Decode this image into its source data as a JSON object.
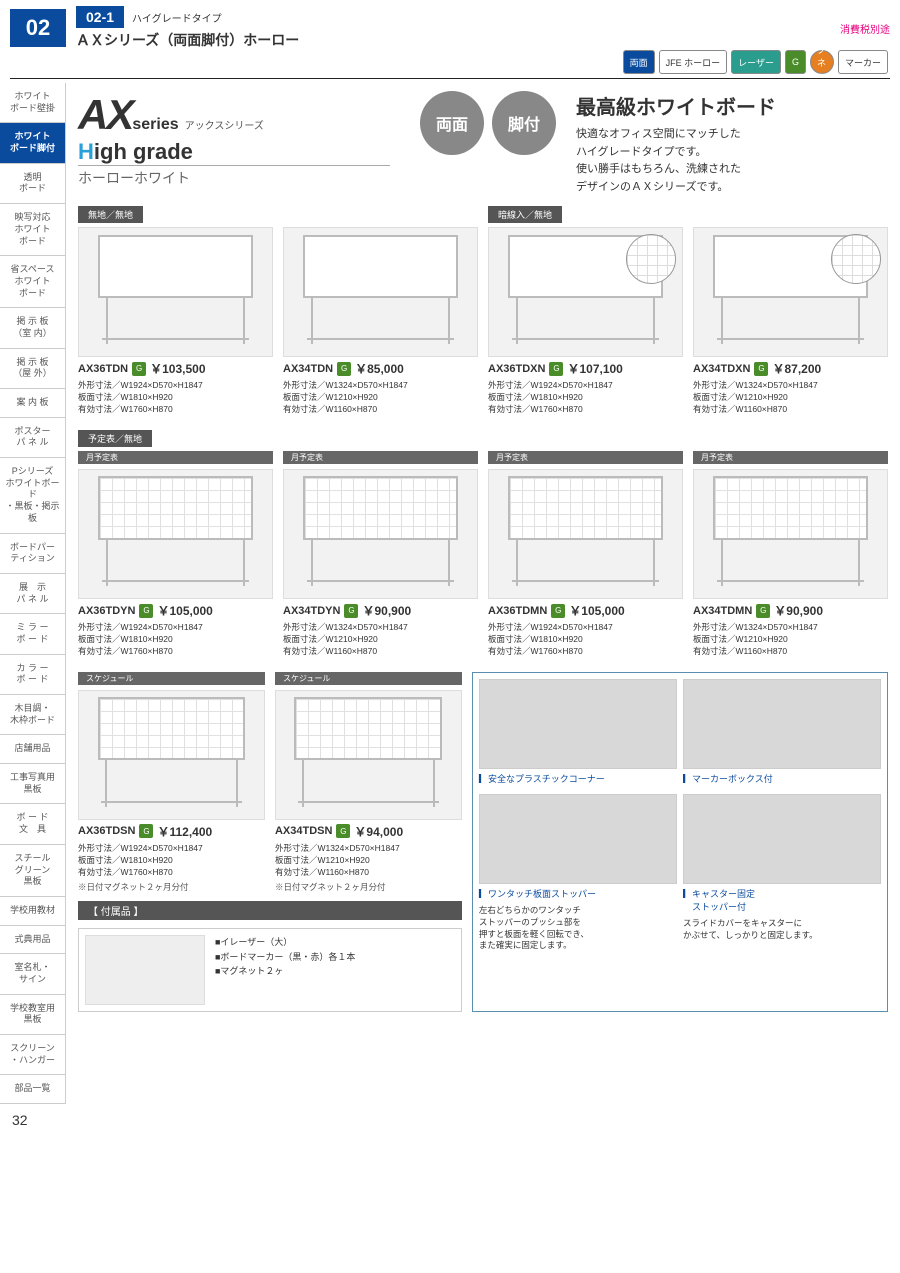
{
  "header": {
    "section_num": "02",
    "subsection_num": "02-1",
    "small_title": "ハイグレードタイプ",
    "main_title": "ＡＸシリーズ（両面脚付）ホーロー",
    "tax_note": "消費税別途",
    "badges": [
      "両面",
      "JFE ホーロー",
      "レーザー",
      "G",
      "マグネット",
      "マーカー"
    ]
  },
  "sidebar": {
    "items": [
      {
        "label": "ホワイト\nボード壁掛",
        "active": false
      },
      {
        "label": "ホワイト\nボード脚付",
        "active": true
      },
      {
        "label": "透明\nボード",
        "active": false
      },
      {
        "label": "映写対応\nホワイト\nボード",
        "active": false
      },
      {
        "label": "省スペース\nホワイト\nボード",
        "active": false
      },
      {
        "label": "掲 示 板\n（室 内）",
        "active": false
      },
      {
        "label": "掲 示 板\n（屋 外）",
        "active": false
      },
      {
        "label": "案 内 板",
        "active": false
      },
      {
        "label": "ポスター\nパ ネ ル",
        "active": false
      },
      {
        "label": "Pシリーズ\nホワイトボード\n・黒板・掲示板",
        "active": false
      },
      {
        "label": "ボードパー\nティション",
        "active": false
      },
      {
        "label": "展　示\nパ ネ ル",
        "active": false
      },
      {
        "label": "ミ ラ ー\nボ ー ド",
        "active": false
      },
      {
        "label": "カ ラ ー\nボ ー ド",
        "active": false
      },
      {
        "label": "木目調・\n木枠ボード",
        "active": false
      },
      {
        "label": "店舗用品",
        "active": false
      },
      {
        "label": "工事写真用\n黒板",
        "active": false
      },
      {
        "label": "ボ ー ド\n文　具",
        "active": false
      },
      {
        "label": "スチール\nグリーン\n黒板",
        "active": false
      },
      {
        "label": "学校用教材",
        "active": false
      },
      {
        "label": "式典用品",
        "active": false
      },
      {
        "label": "室名札・\nサイン",
        "active": false
      },
      {
        "label": "学校教室用\n黒板",
        "active": false
      },
      {
        "label": "スクリーン\n・ハンガー",
        "active": false
      },
      {
        "label": "部品一覧",
        "active": false
      }
    ]
  },
  "hero": {
    "logo_main": "AX",
    "logo_series": "series",
    "logo_sub": "アックスシリーズ",
    "high_grade": "igh grade",
    "high_grade_h": "H",
    "enamel": "ホーローホワイト",
    "circles": [
      "両面",
      "脚付"
    ],
    "right_title": "最高級ホワイトボード",
    "right_desc": "快適なオフィス空間にマッチした\nハイグレードタイプです。\n使い勝手はもちろん、洗練された\nデザインのＡＸシリーズです。"
  },
  "groups": [
    {
      "type_label": "無地／無地",
      "zoom": false,
      "items": [
        {
          "model": "AX36TDN",
          "price": "￥103,500",
          "specs": "外形寸法／W1924×D570×H1847\n板面寸法／W1810×H920\n有効寸法／W1760×H870"
        },
        {
          "model": "AX34TDN",
          "price": "￥85,000",
          "specs": "外形寸法／W1324×D570×H1847\n板面寸法／W1210×H920\n有効寸法／W1160×H870"
        }
      ]
    },
    {
      "type_label": "暗線入／無地",
      "zoom": true,
      "items": [
        {
          "model": "AX36TDXN",
          "price": "￥107,100",
          "specs": "外形寸法／W1924×D570×H1847\n板面寸法／W1810×H920\n有効寸法／W1760×H870"
        },
        {
          "model": "AX34TDXN",
          "price": "￥87,200",
          "specs": "外形寸法／W1324×D570×H1847\n板面寸法／W1210×H920\n有効寸法／W1160×H870"
        }
      ]
    },
    {
      "type_label": "予定表／無地",
      "sublabels": [
        "月予定表",
        "月予定表",
        "月予定表",
        "月予定表"
      ],
      "grid": true,
      "items": [
        {
          "model": "AX36TDYN",
          "price": "￥105,000",
          "specs": "外形寸法／W1924×D570×H1847\n板面寸法／W1810×H920\n有効寸法／W1760×H870"
        },
        {
          "model": "AX34TDYN",
          "price": "￥90,900",
          "specs": "外形寸法／W1324×D570×H1847\n板面寸法／W1210×H920\n有効寸法／W1160×H870"
        },
        {
          "model": "AX36TDMN",
          "price": "￥105,000",
          "specs": "外形寸法／W1924×D570×H1847\n板面寸法／W1810×H920\n有効寸法／W1760×H870"
        },
        {
          "model": "AX34TDMN",
          "price": "￥90,900",
          "specs": "外形寸法／W1324×D570×H1847\n板面寸法／W1210×H920\n有効寸法／W1160×H870"
        }
      ]
    },
    {
      "sublabels": [
        "スケジュール",
        "スケジュール"
      ],
      "grid": true,
      "items": [
        {
          "model": "AX36TDSN",
          "price": "￥112,400",
          "specs": "外形寸法／W1924×D570×H1847\n板面寸法／W1810×H920\n有効寸法／W1760×H870",
          "note": "※日付マグネット２ヶ月分付"
        },
        {
          "model": "AX34TDSN",
          "price": "￥94,000",
          "specs": "外形寸法／W1324×D570×H1847\n板面寸法／W1210×H920\n有効寸法／W1160×H870",
          "note": "※日付マグネット２ヶ月分付"
        }
      ]
    }
  ],
  "features": [
    {
      "label": "安全なプラスチックコーナー",
      "desc": ""
    },
    {
      "label": "マーカーボックス付",
      "desc": ""
    },
    {
      "label": "ワンタッチ板面ストッパー",
      "desc": "左右どちらかのワンタッチ\nストッパーのプッシュ部を\n押すと板面を軽く回転でき、\nまた確実に固定します。"
    },
    {
      "label": "キャスター固定\n　ストッパー付",
      "desc": "スライドカバーをキャスターに\nかぶせて、しっかりと固定します。"
    }
  ],
  "accessory": {
    "title": "【 付属品 】",
    "list": "■イレーザー（大）\n■ボードマーカー（黒・赤）各１本\n■マグネット２ヶ"
  },
  "page_num": "32",
  "colors": {
    "primary": "#0a4b9e",
    "accent": "#e6007e",
    "green": "#4a8c2a",
    "gray_circle": "#888888"
  }
}
